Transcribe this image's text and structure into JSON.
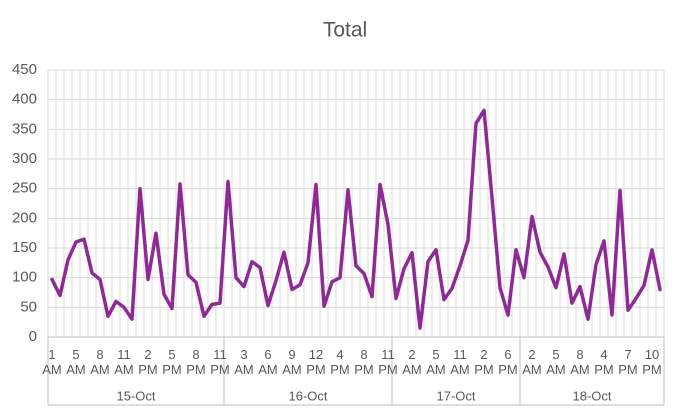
{
  "chart_data": {
    "type": "line",
    "title": "Total",
    "categories": [
      "1 AM",
      null,
      null,
      "5 AM",
      null,
      null,
      "8 AM",
      null,
      null,
      "11 AM",
      null,
      null,
      "2 PM",
      null,
      null,
      "5 PM",
      null,
      null,
      "8 PM",
      null,
      null,
      "11 PM",
      null,
      null,
      "3 AM",
      null,
      null,
      "6 AM",
      null,
      null,
      "9 AM",
      null,
      null,
      "12 PM",
      null,
      null,
      "4 PM",
      null,
      null,
      "8 PM",
      null,
      null,
      "11 PM",
      null,
      null,
      "2 AM",
      null,
      null,
      "5 AM",
      null,
      null,
      "11 AM",
      null,
      null,
      "2 PM",
      null,
      null,
      "6 PM",
      null,
      null,
      "2 AM",
      null,
      null,
      "5 AM",
      null,
      null,
      "8 AM",
      null,
      null,
      "4 PM",
      null,
      null,
      "7 PM",
      null,
      null,
      "10 PM",
      null
    ],
    "groups": [
      {
        "name": "15-Oct",
        "count": 22
      },
      {
        "name": "16-Oct",
        "count": 21
      },
      {
        "name": "17-Oct",
        "count": 16
      },
      {
        "name": "18-Oct",
        "count": 18
      }
    ],
    "series": [
      {
        "name": "Total",
        "color": "#8e2a93",
        "values": [
          97,
          70,
          130,
          160,
          165,
          108,
          97,
          35,
          60,
          50,
          30,
          250,
          97,
          175,
          72,
          48,
          258,
          105,
          92,
          35,
          55,
          57,
          262,
          100,
          85,
          127,
          117,
          53,
          95,
          143,
          80,
          88,
          125,
          257,
          52,
          93,
          100,
          248,
          120,
          107,
          68,
          257,
          190,
          65,
          115,
          142,
          15,
          127,
          147,
          63,
          82,
          120,
          163,
          360,
          382,
          235,
          83,
          37,
          147,
          100,
          203,
          143,
          118,
          83,
          140,
          57,
          85,
          30,
          122,
          162,
          37,
          247,
          45,
          65,
          87,
          147,
          80
        ]
      }
    ],
    "ylim": [
      0,
      450
    ],
    "yticks": [
      0,
      50,
      100,
      150,
      200,
      250,
      300,
      350,
      400,
      450
    ],
    "grid": true
  }
}
